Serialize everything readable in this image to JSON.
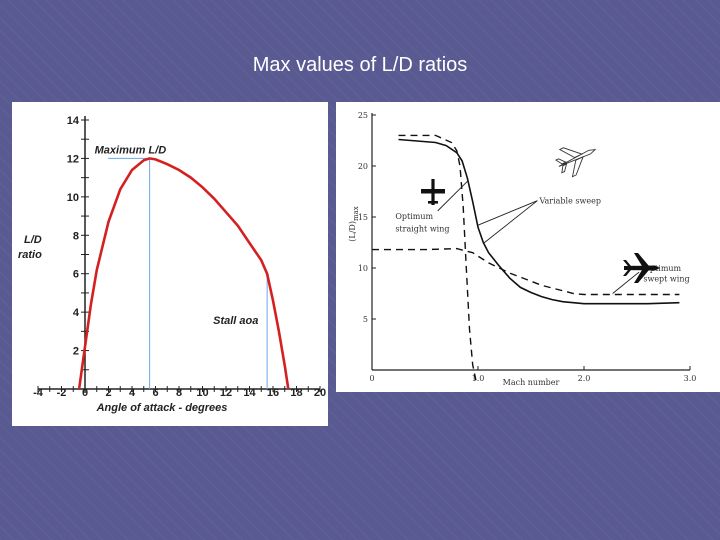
{
  "slide": {
    "title": "Max values of L/D ratios"
  },
  "chart_data": [
    {
      "type": "line",
      "title": "",
      "xlabel": "Angle of attack - degrees",
      "ylabel": "L/D ratio",
      "ylabel_lines": [
        "L/D",
        "ratio"
      ],
      "xlim": [
        -4,
        20
      ],
      "ylim": [
        0,
        14
      ],
      "x_ticks": [
        -4,
        -2,
        0,
        2,
        4,
        6,
        8,
        10,
        12,
        14,
        16,
        18,
        20
      ],
      "y_ticks": [
        2,
        4,
        6,
        8,
        10,
        12,
        14
      ],
      "curve_color": "#d42020",
      "marker_color": "#6aa8e8",
      "grid": false,
      "series": [
        {
          "x": [
            -0.5,
            0,
            0.5,
            1,
            2,
            3,
            4,
            5,
            5.5,
            6,
            7,
            8,
            9,
            10,
            11,
            12,
            13,
            14,
            15,
            15.5,
            16,
            16.5,
            17,
            17.3
          ],
          "values": [
            0,
            2.2,
            4.4,
            6.2,
            8.7,
            10.4,
            11.4,
            11.9,
            12.0,
            11.95,
            11.7,
            11.4,
            11.0,
            10.5,
            9.9,
            9.2,
            8.5,
            7.6,
            6.7,
            6.0,
            4.6,
            3.0,
            1.2,
            0
          ]
        }
      ],
      "annotations": [
        {
          "text": "Maximum L/D",
          "x": 5.5,
          "y": 12
        },
        {
          "text": "Stall aoa",
          "x": 15.5,
          "y": 6
        }
      ]
    },
    {
      "type": "line",
      "title": "",
      "xlabel": "Mach number",
      "ylabel": "(L/D)max",
      "ylabel_main": "(L/D)",
      "ylabel_sub": "max",
      "xlim": [
        0,
        3
      ],
      "ylim": [
        0,
        25
      ],
      "x_ticks": [
        "0",
        "1.0",
        "2.0",
        "3.0"
      ],
      "y_ticks": [
        "0",
        "5",
        "10",
        "15",
        "20",
        "25"
      ],
      "grid": false,
      "series": [
        {
          "style": "solid",
          "x": [
            0.25,
            0.6,
            0.7,
            0.8,
            0.85,
            0.9,
            0.95,
            1.0,
            1.05,
            1.1,
            1.2,
            1.3,
            1.4,
            1.5,
            1.6,
            1.7,
            1.8,
            2.0,
            2.3,
            2.6,
            2.9
          ],
          "values": [
            22.6,
            22.3,
            22.0,
            21.3,
            20.5,
            18.8,
            16.5,
            14.0,
            12.5,
            11.5,
            10.2,
            9.0,
            8.1,
            7.6,
            7.2,
            6.9,
            6.7,
            6.5,
            6.5,
            6.5,
            6.6
          ]
        },
        {
          "style": "dashed",
          "x": [
            0.25,
            0.6,
            0.75,
            0.8,
            0.83,
            0.86,
            0.89,
            0.92,
            0.95,
            0.98
          ],
          "values": [
            23.0,
            23.0,
            22.3,
            21.5,
            20.0,
            16.0,
            10.0,
            4.0,
            0.5,
            -1.0
          ]
        },
        {
          "style": "dashed",
          "x": [
            0.0,
            0.5,
            0.8,
            0.95,
            1.1,
            1.3,
            1.6,
            1.9,
            2.0,
            2.5,
            2.9
          ],
          "values": [
            11.8,
            11.8,
            11.9,
            11.5,
            10.5,
            9.5,
            8.3,
            7.5,
            7.4,
            7.4,
            7.4
          ]
        }
      ],
      "annotations": [
        {
          "text": "Variable sweep",
          "x": 1.58,
          "y": 16.3
        },
        {
          "text": "Optimum",
          "x": 0.22,
          "y": 14.8
        },
        {
          "text": "straight wing",
          "x": 0.22,
          "y": 13.6
        },
        {
          "text": "Optimum",
          "x": 2.56,
          "y": 9.7
        },
        {
          "text": "swept wing",
          "x": 2.56,
          "y": 8.7
        }
      ],
      "icons": [
        "straight-wing-aircraft-icon",
        "variable-sweep-aircraft-icon",
        "swept-wing-aircraft-icon"
      ]
    }
  ]
}
